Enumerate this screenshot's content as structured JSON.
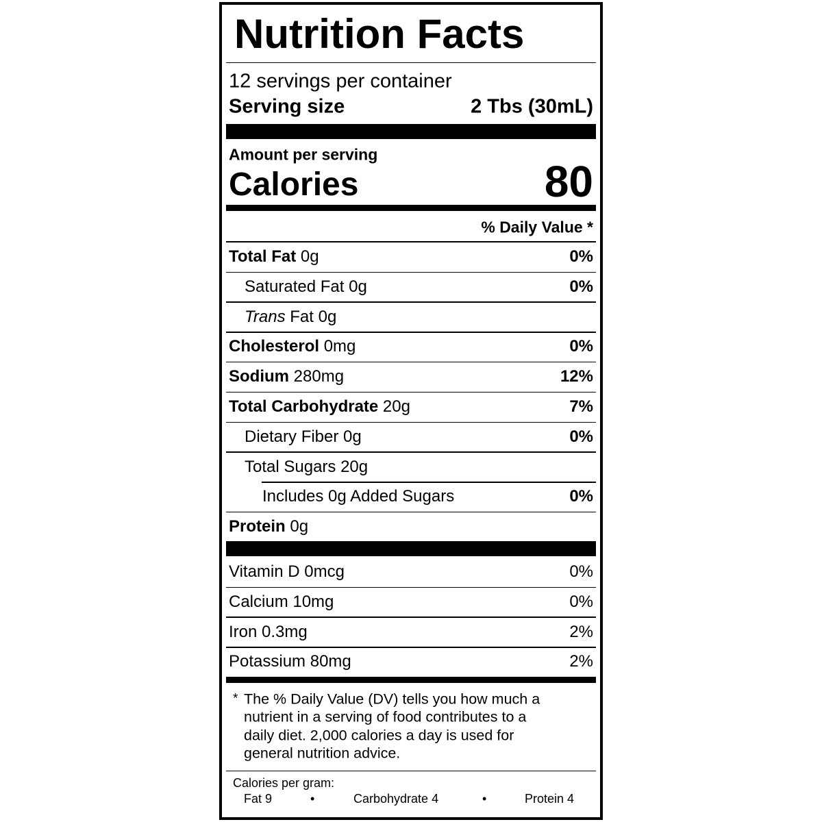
{
  "header": {
    "title": "Nutrition Facts",
    "servings": "12 servings per container",
    "serving_size_label": "Serving size",
    "serving_size": "2 Tbs (30mL)"
  },
  "calories": {
    "amount_per_serving": "Amount per serving",
    "label": "Calories",
    "value": 80
  },
  "dv_header": "% Daily Value *",
  "nutrients": [
    {
      "name": "Total Fat",
      "amount": "0g",
      "dv": "0%",
      "level": 0,
      "bold": true
    },
    {
      "name": "Saturated Fat",
      "amount": "0g",
      "dv": "0%",
      "level": 1,
      "bold": false
    },
    {
      "name_italic": "Trans",
      "name": "Fat",
      "amount": "0g",
      "level": 1,
      "bold": false
    },
    {
      "name": "Cholesterol",
      "amount": "0mg",
      "dv": "0%",
      "level": 0,
      "bold": true
    },
    {
      "name": "Sodium",
      "amount": "280mg",
      "dv": "12%",
      "level": 0,
      "bold": true
    },
    {
      "name": "Total Carbohydrate",
      "amount": "20g",
      "dv": "7%",
      "level": 0,
      "bold": true
    },
    {
      "name": "Dietary Fiber",
      "amount": "0g",
      "dv": "0%",
      "level": 1,
      "bold": false
    },
    {
      "name": "Total Sugars",
      "amount": "20g",
      "level": 1,
      "bold": false
    },
    {
      "name": "Includes 0g Added Sugars",
      "dv": "0%",
      "level": 2,
      "bold": false
    },
    {
      "name": "Protein",
      "amount": "0g",
      "level": 0,
      "bold": true
    }
  ],
  "vitamins": [
    {
      "name": "Vitamin D",
      "amount": "0mcg",
      "dv": "0%"
    },
    {
      "name": "Calcium",
      "amount": "10mg",
      "dv": "0%"
    },
    {
      "name": "Iron",
      "amount": "0.3mg",
      "dv": "2%"
    },
    {
      "name": "Potassium",
      "amount": "80mg",
      "dv": "2%"
    }
  ],
  "footnote": {
    "star": "*",
    "lines": [
      "The % Daily Value (DV) tells you how much a",
      "nutrient in a serving of food contributes to a",
      "daily diet. 2,000 calories a day is used for",
      "general nutrition advice."
    ]
  },
  "calories_per_gram": {
    "label": "Calories per gram:",
    "items": [
      "Fat 9",
      "Carbohydrate 4",
      "Protein 4"
    ],
    "bullet": "•"
  }
}
